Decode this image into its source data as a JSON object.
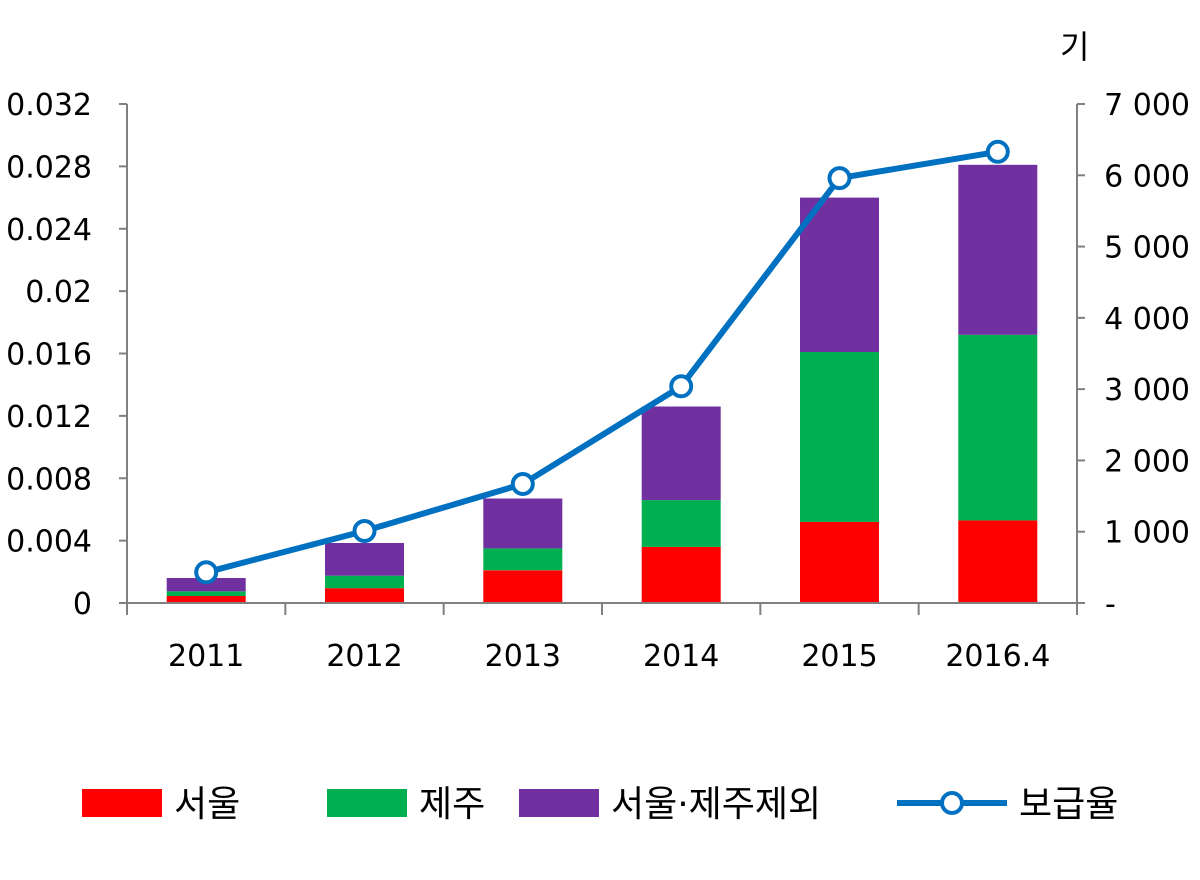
{
  "chart_data": {
    "type": "bar",
    "stacked": true,
    "categories": [
      "2011",
      "2012",
      "2013",
      "2014",
      "2015",
      "2016.4"
    ],
    "series": [
      {
        "name": "서울",
        "color": "#ff0000",
        "axis": "left",
        "values": [
          0.00045,
          0.00095,
          0.0021,
          0.0036,
          0.0052,
          0.0053
        ]
      },
      {
        "name": "제주",
        "color": "#00b050",
        "axis": "left",
        "values": [
          0.0003,
          0.0008,
          0.0014,
          0.003,
          0.0109,
          0.0119
        ]
      },
      {
        "name": "서울·제주제외",
        "color": "#7030a0",
        "axis": "left",
        "values": [
          0.00085,
          0.0021,
          0.0032,
          0.006,
          0.0099,
          0.0109
        ]
      },
      {
        "name": "보급율",
        "type": "line",
        "color": "#0070c0",
        "axis": "right",
        "values": [
          430,
          1010,
          1670,
          3040,
          5960,
          6330
        ]
      }
    ],
    "y_left": {
      "ylim": [
        0,
        0.032
      ],
      "ticks": [
        "0",
        "0.004",
        "0.008",
        "0.012",
        "0.016",
        "0.02",
        "0.024",
        "0.028",
        "0.032"
      ]
    },
    "y_right": {
      "unit": "기",
      "ylim": [
        0,
        7000
      ],
      "ticks": [
        "-",
        "1 000",
        "2 000",
        "3 000",
        "4 000",
        "5 000",
        "6 000",
        "7 000"
      ]
    },
    "legend_position": "bottom",
    "grid": false
  }
}
